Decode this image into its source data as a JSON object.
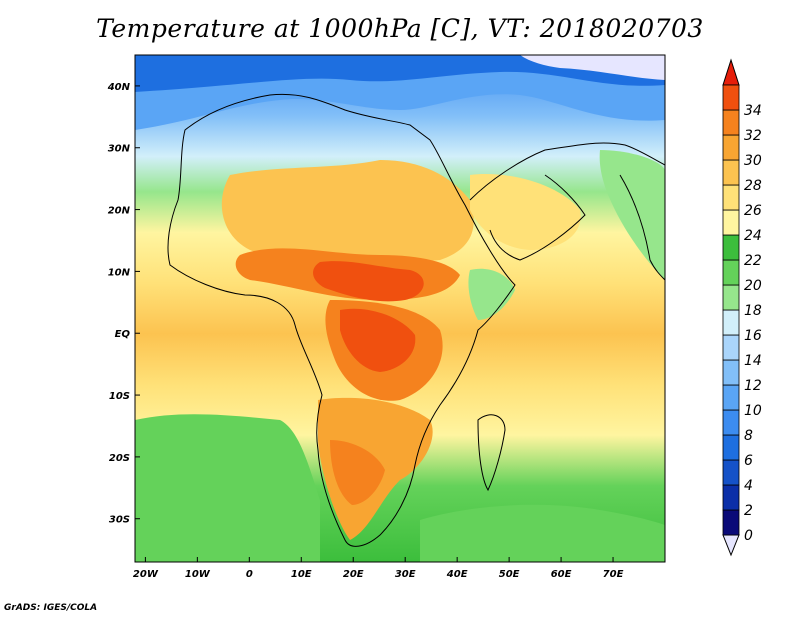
{
  "title": "Temperature at 1000hPa [C], VT: 2018020703",
  "credit": "GrADS: IGES/COLA",
  "map": {
    "lon_range": [
      -22,
      80
    ],
    "lat_range": [
      -37,
      45
    ],
    "lat_ticks": [
      {
        "value": 40,
        "label": "40N"
      },
      {
        "value": 30,
        "label": "30N"
      },
      {
        "value": 20,
        "label": "20N"
      },
      {
        "value": 10,
        "label": "10N"
      },
      {
        "value": 0,
        "label": "EQ"
      },
      {
        "value": -10,
        "label": "10S"
      },
      {
        "value": -20,
        "label": "20S"
      },
      {
        "value": -30,
        "label": "30S"
      }
    ],
    "lon_ticks": [
      {
        "value": -20,
        "label": "20W"
      },
      {
        "value": -10,
        "label": "10W"
      },
      {
        "value": 0,
        "label": "0"
      },
      {
        "value": 10,
        "label": "10E"
      },
      {
        "value": 20,
        "label": "20E"
      },
      {
        "value": 30,
        "label": "30E"
      },
      {
        "value": 40,
        "label": "40E"
      },
      {
        "value": 50,
        "label": "50E"
      },
      {
        "value": 60,
        "label": "60E"
      },
      {
        "value": 70,
        "label": "70E"
      }
    ]
  },
  "colorbar": {
    "levels": [
      {
        "label": "0",
        "color": "#0a0a78"
      },
      {
        "label": "2",
        "color": "#0b2fa8"
      },
      {
        "label": "4",
        "color": "#1552c8"
      },
      {
        "label": "6",
        "color": "#1e6fe0"
      },
      {
        "label": "8",
        "color": "#3c8cf0"
      },
      {
        "label": "10",
        "color": "#5aa5f5"
      },
      {
        "label": "12",
        "color": "#82bff8"
      },
      {
        "label": "14",
        "color": "#aad5fb"
      },
      {
        "label": "16",
        "color": "#d2effa"
      },
      {
        "label": "18",
        "color": "#96e68c"
      },
      {
        "label": "20",
        "color": "#64d25a"
      },
      {
        "label": "22",
        "color": "#3cbe3c"
      },
      {
        "label": "24",
        "color": "#fff5a0"
      },
      {
        "label": "26",
        "color": "#ffe178"
      },
      {
        "label": "28",
        "color": "#fcc350"
      },
      {
        "label": "30",
        "color": "#f8a532"
      },
      {
        "label": "32",
        "color": "#f5821e"
      },
      {
        "label": "34",
        "color": "#f0500f"
      }
    ],
    "under_color": "#e6e6ff",
    "over_color": "#e61e0a"
  }
}
